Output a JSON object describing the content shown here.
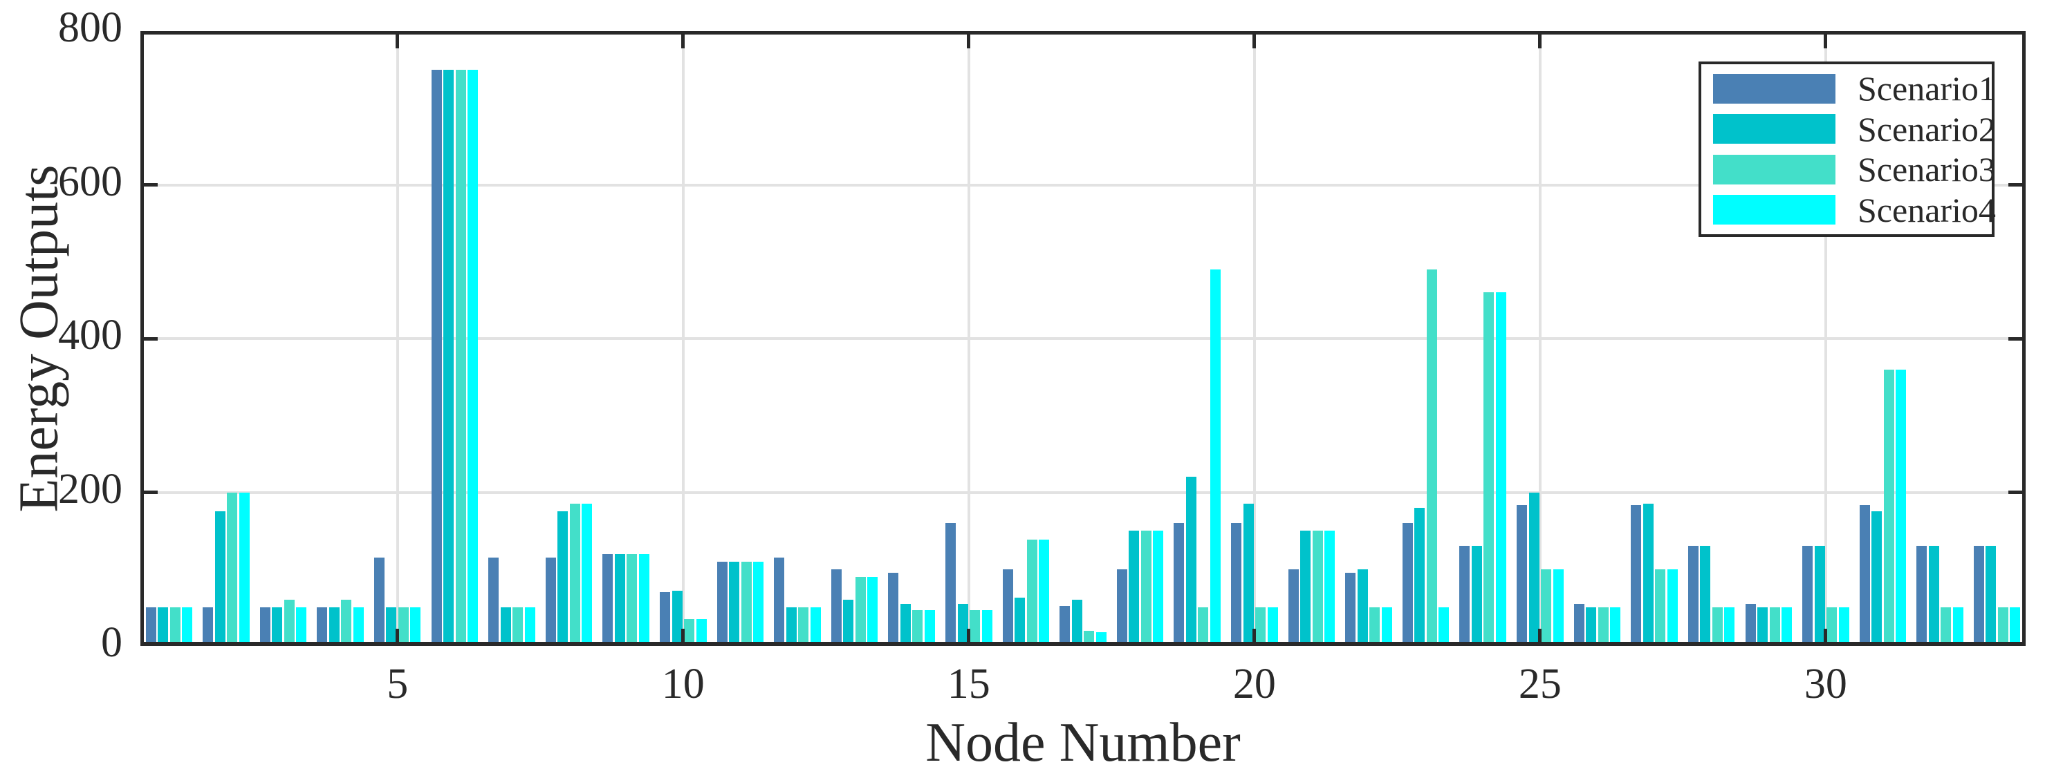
{
  "chart_data": {
    "type": "bar",
    "title": "",
    "xlabel": "Node Number",
    "ylabel": "Energy Outputs",
    "x": [
      1,
      2,
      3,
      4,
      5,
      6,
      7,
      8,
      9,
      10,
      11,
      12,
      13,
      14,
      15,
      16,
      17,
      18,
      19,
      20,
      21,
      22,
      23,
      24,
      25,
      26,
      27,
      28,
      29,
      30,
      31,
      32,
      33
    ],
    "xticks": [
      5,
      10,
      15,
      20,
      25,
      30
    ],
    "yticks": [
      0,
      200,
      400,
      600,
      800
    ],
    "ylim": [
      0,
      800
    ],
    "grid": true,
    "legend_position": "top-right",
    "axis_color": "#292929",
    "grid_color": "#e2e2e2",
    "series": [
      {
        "name": "Scenario1",
        "color": "#4a80b4",
        "values": [
          50,
          50,
          50,
          50,
          115,
          750,
          115,
          115,
          120,
          70,
          110,
          115,
          100,
          95,
          160,
          100,
          52,
          100,
          160,
          160,
          100,
          95,
          160,
          130,
          183,
          55,
          183,
          130,
          55,
          130,
          183,
          130,
          130
        ]
      },
      {
        "name": "Scenario2",
        "color": "#00c2cb",
        "values": [
          50,
          175,
          50,
          50,
          50,
          750,
          50,
          175,
          120,
          72,
          110,
          50,
          60,
          55,
          55,
          63,
          60,
          150,
          220,
          185,
          150,
          100,
          180,
          130,
          200,
          50,
          185,
          130,
          50,
          130,
          175,
          130,
          130
        ]
      },
      {
        "name": "Scenario3",
        "color": "#43dfc9",
        "values": [
          50,
          200,
          60,
          60,
          50,
          750,
          50,
          185,
          120,
          35,
          110,
          50,
          90,
          47,
          47,
          138,
          20,
          150,
          50,
          50,
          150,
          50,
          490,
          460,
          100,
          50,
          100,
          50,
          50,
          50,
          360,
          50,
          50
        ]
      },
      {
        "name": "Scenario4",
        "color": "#00feff",
        "values": [
          50,
          200,
          50,
          50,
          50,
          750,
          50,
          185,
          120,
          35,
          110,
          50,
          90,
          47,
          47,
          138,
          18,
          150,
          490,
          50,
          150,
          50,
          50,
          460,
          100,
          50,
          100,
          50,
          50,
          50,
          360,
          50,
          50
        ]
      }
    ]
  }
}
